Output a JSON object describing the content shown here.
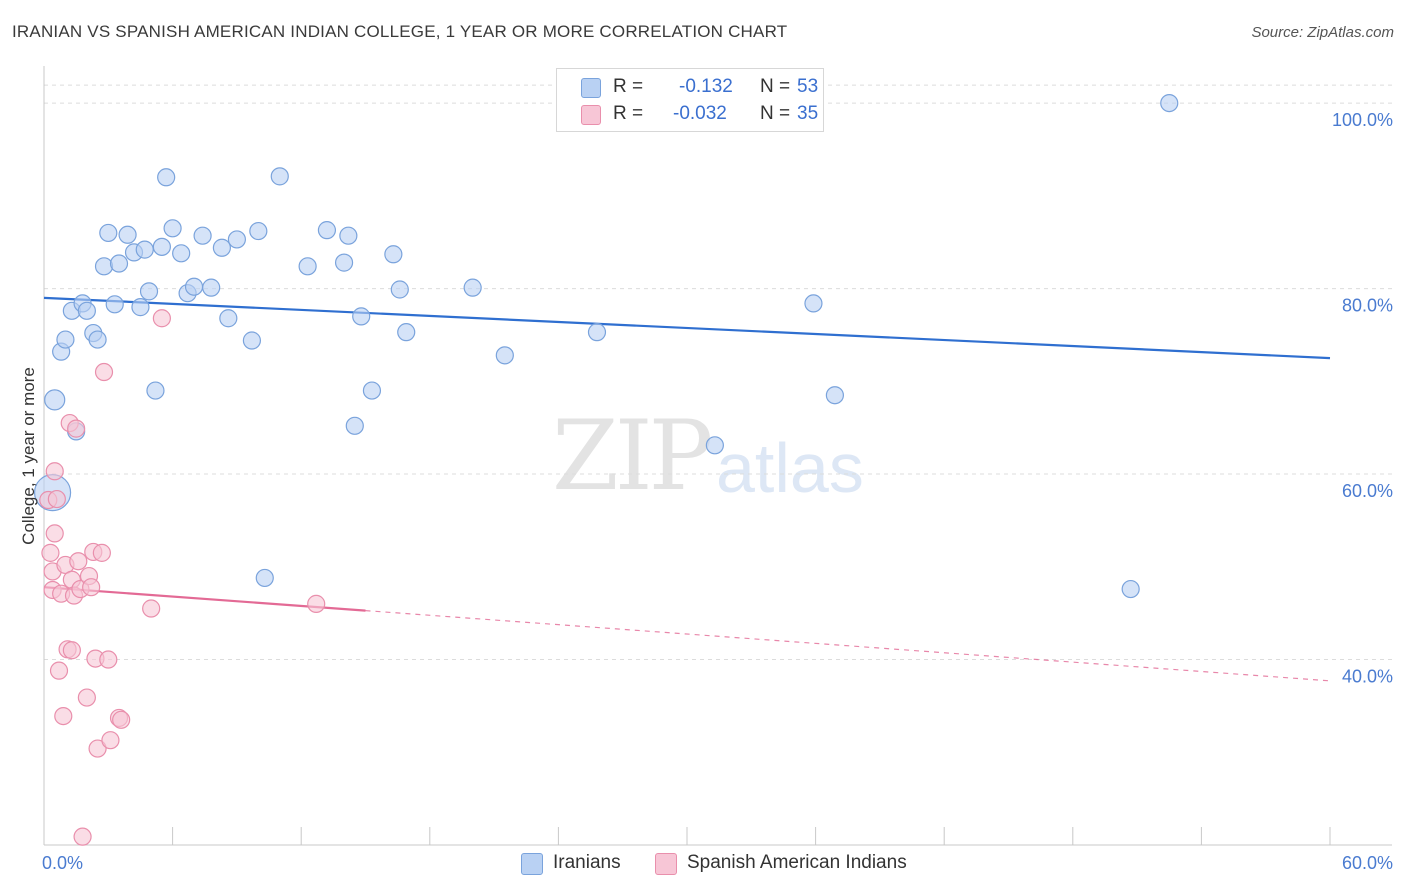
{
  "title": "IRANIAN VS SPANISH AMERICAN INDIAN COLLEGE, 1 YEAR OR MORE CORRELATION CHART",
  "source": "Source: ZipAtlas.com",
  "watermark": {
    "zip": "ZIP",
    "atlas": "atlas"
  },
  "colors": {
    "blue_fill": "#b9d1f3",
    "blue_stroke": "#7aa3dc",
    "blue_line": "#2f6fd0",
    "pink_fill": "#f7c6d6",
    "pink_stroke": "#e98fac",
    "pink_line": "#e36a95",
    "grid": "#dcdcdc",
    "tick_label": "#4a7bd0"
  },
  "legend": {
    "rows": [
      {
        "r_label": "R =",
        "r_value": "-0.132",
        "n_label": "N =",
        "n_value": "53"
      },
      {
        "r_label": "R =",
        "r_value": "-0.032",
        "n_label": "N =",
        "n_value": "35"
      }
    ]
  },
  "bottom_legend": {
    "series1": "Iranians",
    "series2": "Spanish American Indians"
  },
  "chart_data": {
    "type": "scatter",
    "title": "IRANIAN VS SPANISH AMERICAN INDIAN COLLEGE, 1 YEAR OR MORE CORRELATION CHART",
    "xlabel": "",
    "ylabel": "College, 1 year or more",
    "xlim": [
      0,
      60
    ],
    "ylim": [
      20,
      104
    ],
    "x_tick_labels": [
      "0.0%",
      "60.0%"
    ],
    "y_ticks": [
      40,
      60,
      80,
      100
    ],
    "y_tick_labels": [
      "40.0%",
      "60.0%",
      "80.0%",
      "100.0%"
    ],
    "grid": true,
    "series": [
      {
        "name": "Iranians",
        "r": -0.132,
        "n": 53,
        "trend": {
          "x0": 0,
          "y0": 79.0,
          "x1": 60,
          "y1": 72.5,
          "solid_until": 60
        },
        "points": [
          [
            0.5,
            68.0
          ],
          [
            0.4,
            58.0
          ],
          [
            0.8,
            73.2
          ],
          [
            1.0,
            74.5
          ],
          [
            1.3,
            77.6
          ],
          [
            1.5,
            64.6
          ],
          [
            1.8,
            78.4
          ],
          [
            2.0,
            77.6
          ],
          [
            2.3,
            75.2
          ],
          [
            2.5,
            74.5
          ],
          [
            2.8,
            82.4
          ],
          [
            3.0,
            86.0
          ],
          [
            3.3,
            78.3
          ],
          [
            3.5,
            82.7
          ],
          [
            3.9,
            85.8
          ],
          [
            4.2,
            83.9
          ],
          [
            4.5,
            78.0
          ],
          [
            4.7,
            84.2
          ],
          [
            4.9,
            79.7
          ],
          [
            5.2,
            69.0
          ],
          [
            5.5,
            84.5
          ],
          [
            5.7,
            92.0
          ],
          [
            6.0,
            86.5
          ],
          [
            6.4,
            83.8
          ],
          [
            6.7,
            79.5
          ],
          [
            7.0,
            80.2
          ],
          [
            7.4,
            85.7
          ],
          [
            7.8,
            80.1
          ],
          [
            8.3,
            84.4
          ],
          [
            8.6,
            76.8
          ],
          [
            9.0,
            85.3
          ],
          [
            9.7,
            74.4
          ],
          [
            10.0,
            86.2
          ],
          [
            10.3,
            48.8
          ],
          [
            11.0,
            92.1
          ],
          [
            12.3,
            82.4
          ],
          [
            13.2,
            86.3
          ],
          [
            14.0,
            82.8
          ],
          [
            14.2,
            85.7
          ],
          [
            14.5,
            65.2
          ],
          [
            14.8,
            77.0
          ],
          [
            15.3,
            69.0
          ],
          [
            16.3,
            83.7
          ],
          [
            16.6,
            79.9
          ],
          [
            16.9,
            75.3
          ],
          [
            20.0,
            80.1
          ],
          [
            21.5,
            72.8
          ],
          [
            25.8,
            75.3
          ],
          [
            31.3,
            63.1
          ],
          [
            35.9,
            78.4
          ],
          [
            36.9,
            68.5
          ],
          [
            50.7,
            47.6
          ],
          [
            52.5,
            100.0
          ]
        ]
      },
      {
        "name": "Spanish American Indians",
        "r": -0.032,
        "n": 35,
        "trend": {
          "x0": 0,
          "y0": 47.8,
          "x1": 60,
          "y1": 37.7,
          "solid_until": 15
        },
        "points": [
          [
            0.2,
            57.2
          ],
          [
            0.3,
            51.5
          ],
          [
            0.4,
            49.5
          ],
          [
            0.4,
            47.5
          ],
          [
            0.5,
            60.3
          ],
          [
            0.5,
            53.6
          ],
          [
            0.6,
            57.3
          ],
          [
            0.7,
            38.8
          ],
          [
            0.8,
            47.1
          ],
          [
            0.9,
            33.9
          ],
          [
            1.0,
            50.2
          ],
          [
            1.1,
            41.1
          ],
          [
            1.2,
            65.5
          ],
          [
            1.3,
            48.6
          ],
          [
            1.3,
            41.0
          ],
          [
            1.4,
            46.9
          ],
          [
            1.5,
            64.9
          ],
          [
            1.6,
            50.6
          ],
          [
            1.7,
            47.6
          ],
          [
            1.8,
            20.9
          ],
          [
            2.0,
            35.9
          ],
          [
            2.1,
            49.0
          ],
          [
            2.2,
            47.8
          ],
          [
            2.3,
            51.6
          ],
          [
            2.4,
            40.1
          ],
          [
            2.5,
            30.4
          ],
          [
            2.7,
            51.5
          ],
          [
            2.8,
            71.0
          ],
          [
            3.0,
            40.0
          ],
          [
            3.1,
            31.3
          ],
          [
            3.5,
            33.7
          ],
          [
            3.6,
            33.5
          ],
          [
            5.0,
            45.5
          ],
          [
            5.5,
            76.8
          ],
          [
            12.7,
            46.0
          ]
        ]
      }
    ]
  }
}
